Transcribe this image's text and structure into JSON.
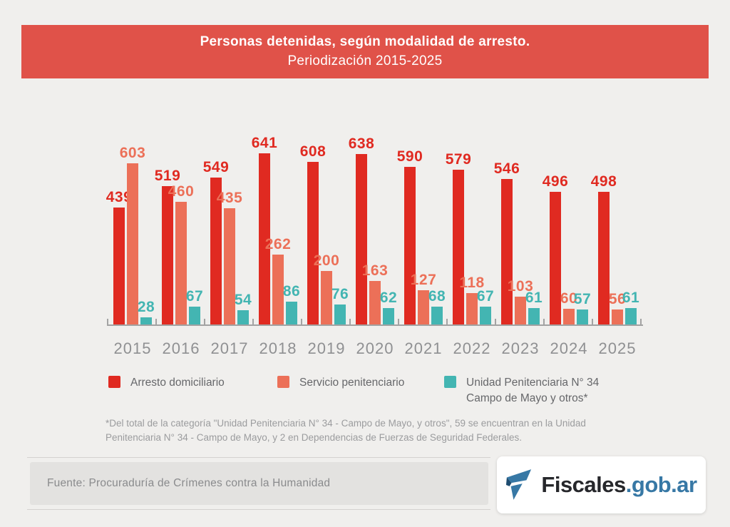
{
  "header": {
    "title": "Personas detenidas, según modalidad de arresto.",
    "subtitle": "Periodización 2015-2025"
  },
  "chart_data": {
    "type": "bar",
    "title": "Personas detenidas, según modalidad de arresto.",
    "subtitle": "Periodización 2015-2025",
    "categories": [
      "2015",
      "2016",
      "2017",
      "2018",
      "2019",
      "2020",
      "2021",
      "2022",
      "2023",
      "2024",
      "2025"
    ],
    "series": [
      {
        "name": "Arresto domiciliario",
        "color": "#e02a21",
        "values": [
          439,
          519,
          549,
          641,
          608,
          638,
          590,
          579,
          546,
          496,
          498
        ]
      },
      {
        "name": "Servicio penitenciario",
        "color": "#ec7058",
        "values": [
          603,
          460,
          435,
          262,
          200,
          163,
          127,
          118,
          103,
          60,
          56
        ]
      },
      {
        "name": "Unidad Penitenciaria N° 34 Campo de Mayo y otros*",
        "color": "#43b5b2",
        "values": [
          28,
          67,
          54,
          86,
          76,
          62,
          68,
          67,
          61,
          57,
          61
        ]
      }
    ],
    "ylim": [
      0,
      641
    ],
    "grid": false,
    "value_labels": true,
    "legend_position": "bottom"
  },
  "legend": {
    "items": [
      {
        "lines": [
          "Arresto domiciliario"
        ],
        "color": "#e02a21"
      },
      {
        "lines": [
          "Servicio penitenciario"
        ],
        "color": "#ec7058"
      },
      {
        "lines": [
          "Unidad Penitenciaria N° 34",
          "Campo de Mayo y otros*"
        ],
        "color": "#43b5b2"
      }
    ]
  },
  "footnote": {
    "text": "*Del total de la categoría \"Unidad Penitenciaria N° 34 - Campo de Mayo, y otros\", 59 se encuentran en la Unidad Penitenciaria N° 34 - Campo de Mayo, y 2 en Dependencias de Fuerzas de Seguridad Federales."
  },
  "source": {
    "text": "Fuente: Procuraduría de Crímenes contra la Humanidad"
  },
  "logo": {
    "name_black": "Fiscales",
    "name_blue": ".gob.ar",
    "color_black": "#26272b",
    "color_blue": "#3778a5",
    "icon": "fiscales-flag-icon"
  },
  "colors": {
    "page_background": "#f0efed",
    "header_band": "#e05249",
    "axis": "#a3a3a3",
    "year_labels": "#8f9092"
  }
}
